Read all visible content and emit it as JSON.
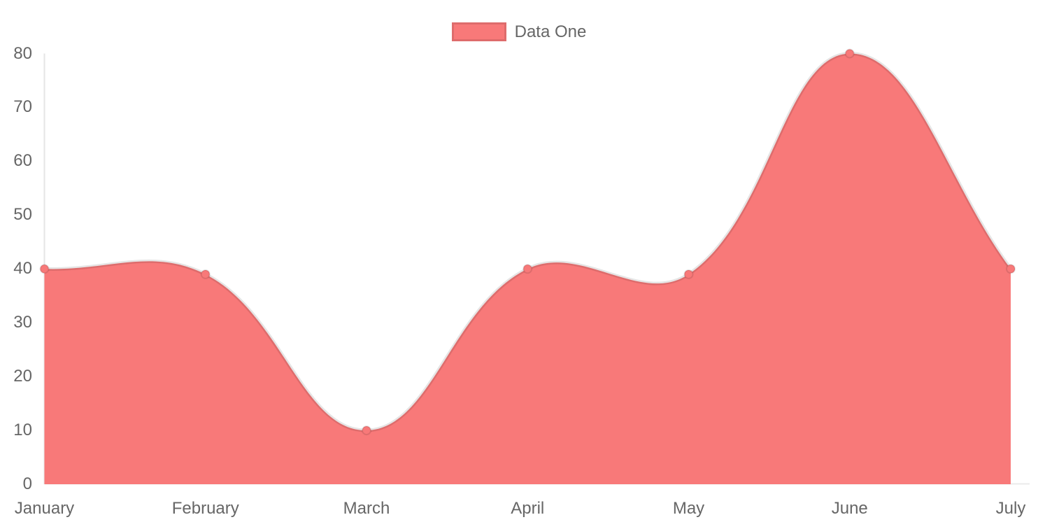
{
  "legend": {
    "items": [
      {
        "label": "Data One"
      }
    ]
  },
  "chart_data": {
    "type": "area",
    "title": "",
    "categories": [
      "January",
      "February",
      "March",
      "April",
      "May",
      "June",
      "July"
    ],
    "series": [
      {
        "name": "Data One",
        "values": [
          40,
          39,
          10,
          40,
          39,
          80,
          40
        ]
      }
    ],
    "xlabel": "",
    "ylabel": "",
    "ylim": [
      0,
      80
    ],
    "y_ticks": [
      0,
      10,
      20,
      30,
      40,
      50,
      60,
      70,
      80
    ],
    "grid": false,
    "legend_position": "top-center",
    "line_tension": 0.4,
    "colors": {
      "fill": "#f87979",
      "line": "rgba(0,0,0,0.1)",
      "point_fill": "#f87979",
      "point_border": "rgba(0,0,0,0.1)",
      "axis_line": "rgba(0,0,0,0.10)",
      "baseline": "rgba(0,0,0,0.08)",
      "tick_text": "#666666",
      "background": "#ffffff"
    }
  }
}
